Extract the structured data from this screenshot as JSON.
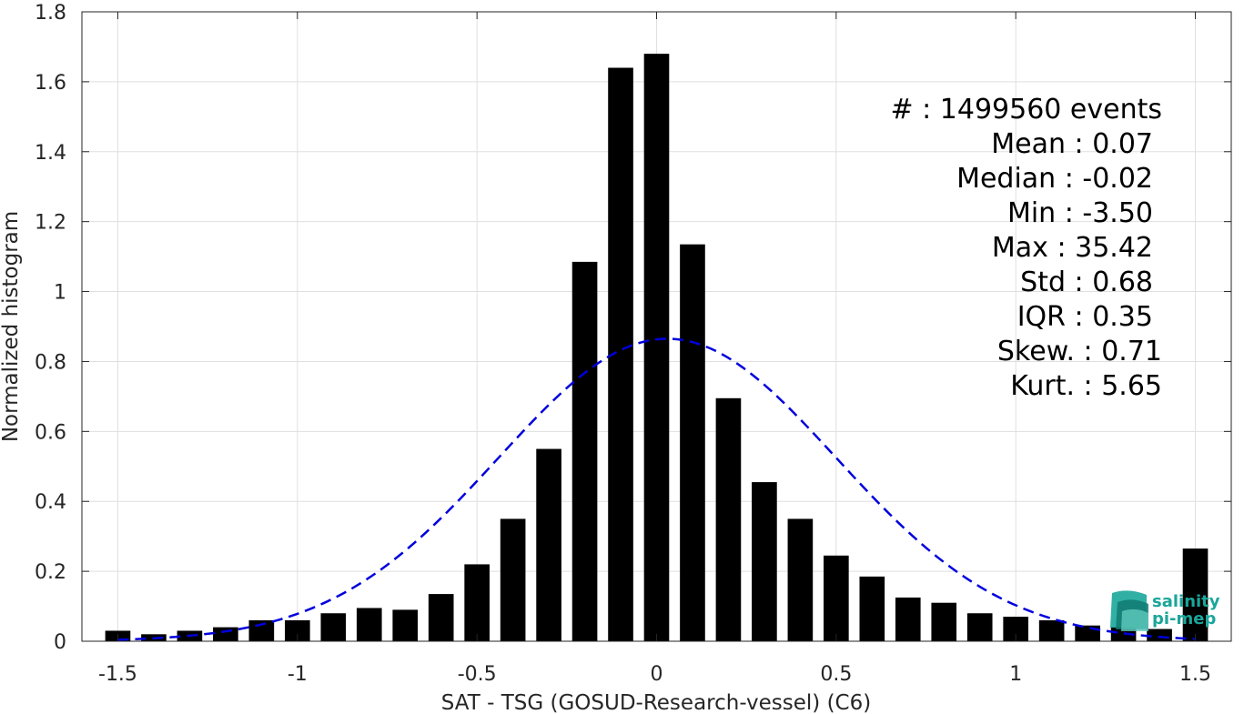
{
  "chart_data": {
    "type": "bar",
    "xlabel": "SAT - TSG (GOSUD-Research-vessel) (C6)",
    "ylabel": "Normalized histogram",
    "xlim": [
      -1.6,
      1.6
    ],
    "ylim": [
      0,
      1.8
    ],
    "grid": true,
    "x_ticks": [
      -1.5,
      -1,
      -0.5,
      0,
      0.5,
      1,
      1.5
    ],
    "x_tick_labels": [
      "-1.5",
      "-1",
      "-0.5",
      "0",
      "0.5",
      "1",
      "1.5"
    ],
    "y_ticks": [
      0,
      0.2,
      0.4,
      0.6,
      0.8,
      1,
      1.2,
      1.4,
      1.6,
      1.8
    ],
    "y_tick_labels": [
      "0",
      "0.2",
      "0.4",
      "0.6",
      "0.8",
      "1",
      "1.2",
      "1.4",
      "1.6",
      "1.8"
    ],
    "bin_width": 0.1,
    "bar_color": "#000000",
    "bars": {
      "x": [
        -1.5,
        -1.4,
        -1.3,
        -1.2,
        -1.1,
        -1.0,
        -0.9,
        -0.8,
        -0.7,
        -0.6,
        -0.5,
        -0.4,
        -0.3,
        -0.2,
        -0.1,
        0.0,
        0.1,
        0.2,
        0.3,
        0.4,
        0.5,
        0.6,
        0.7,
        0.8,
        0.9,
        1.0,
        1.1,
        1.2,
        1.3,
        1.4,
        1.5
      ],
      "y": [
        0.03,
        0.02,
        0.03,
        0.04,
        0.06,
        0.06,
        0.08,
        0.095,
        0.09,
        0.135,
        0.22,
        0.35,
        0.55,
        1.085,
        1.64,
        1.68,
        1.135,
        0.695,
        0.455,
        0.35,
        0.245,
        0.185,
        0.125,
        0.11,
        0.08,
        0.07,
        0.06,
        0.045,
        0.04,
        0.035,
        0.265
      ]
    },
    "fit_curve": {
      "type": "gaussian",
      "style": "dashed",
      "color": "#0000dd",
      "x_range": [
        -1.5,
        1.5
      ],
      "peak": 0.865,
      "mean": 0.03,
      "sigma": 0.47
    },
    "annotations": [
      "#  : 1499560 events",
      "Mean : 0.07",
      "Median : -0.02",
      "Min : -3.50",
      "Max : 35.42",
      "Std : 0.68",
      "IQR : 0.35",
      "Skew. : 0.71",
      "Kurt. : 5.65"
    ]
  },
  "logo": {
    "line1": "salinity",
    "line2": "pi-mep",
    "colors": [
      "#1aa69a",
      "#0f7a72",
      "#5fc9bd"
    ]
  }
}
